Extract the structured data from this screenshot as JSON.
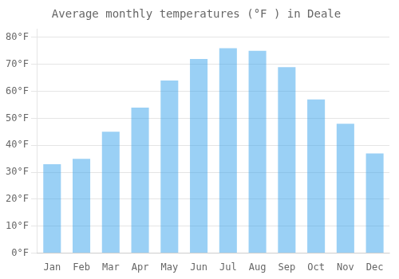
{
  "chart_data": {
    "type": "bar",
    "title": "Average monthly temperatures (°F ) in Deale",
    "categories": [
      "Jan",
      "Feb",
      "Mar",
      "Apr",
      "May",
      "Jun",
      "Jul",
      "Aug",
      "Sep",
      "Oct",
      "Nov",
      "Dec"
    ],
    "values": [
      33,
      35,
      45,
      54,
      64,
      72,
      76,
      75,
      69,
      57,
      48,
      37
    ],
    "ylim": [
      0,
      83
    ],
    "yticks": [
      {
        "value": 0,
        "label": "0°F"
      },
      {
        "value": 10,
        "label": "10°F"
      },
      {
        "value": 20,
        "label": "20°F"
      },
      {
        "value": 30,
        "label": "30°F"
      },
      {
        "value": 40,
        "label": "40°F"
      },
      {
        "value": 50,
        "label": "50°F"
      },
      {
        "value": 60,
        "label": "60°F"
      },
      {
        "value": 70,
        "label": "70°F"
      },
      {
        "value": 80,
        "label": "80°F"
      }
    ],
    "grid": "y"
  }
}
